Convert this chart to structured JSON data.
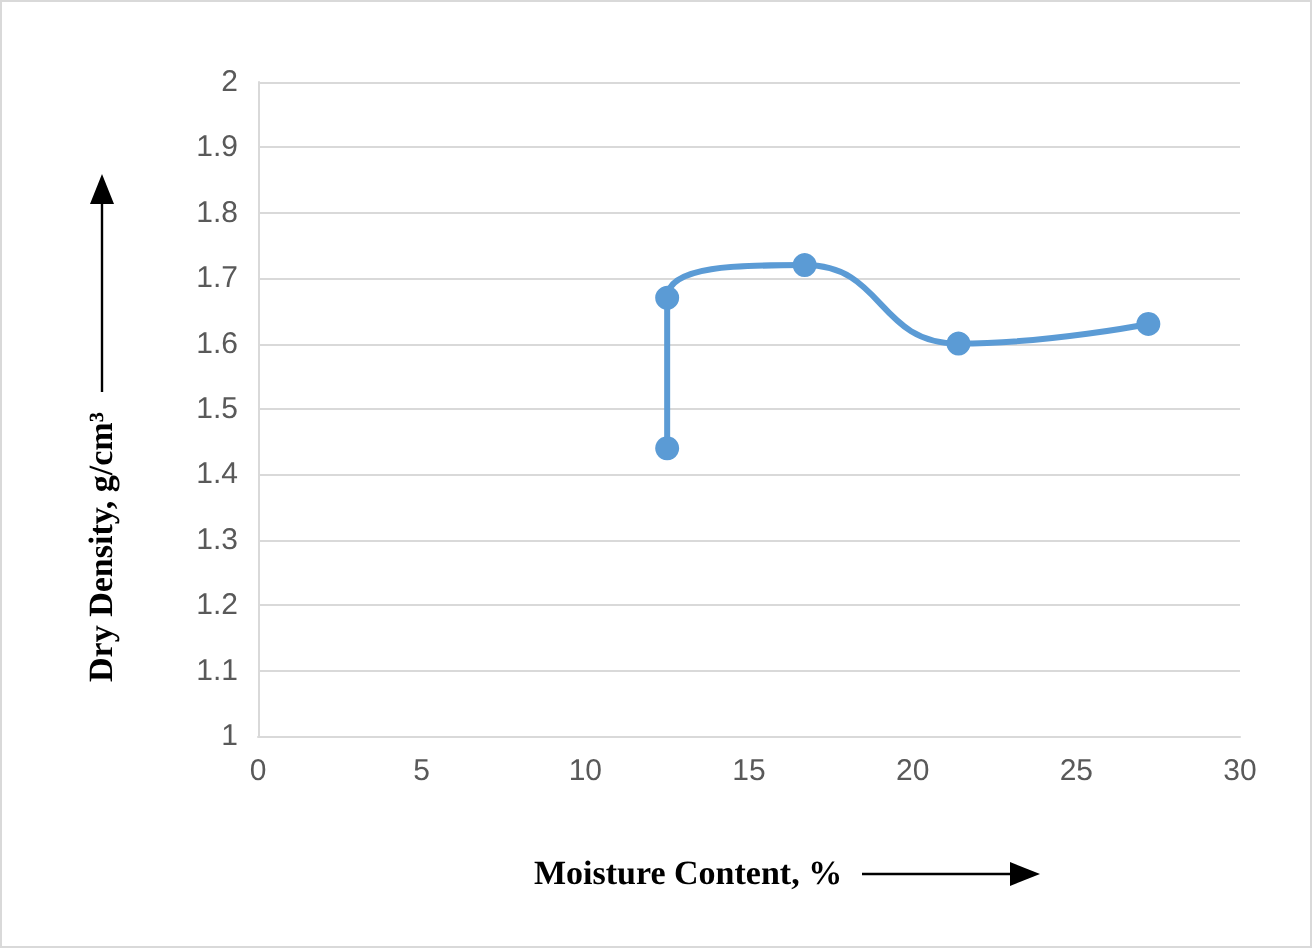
{
  "chart_data": {
    "type": "line",
    "xlabel": "Moisture Content, %",
    "ylabel": "Dry Density, g/cm³",
    "series": [
      {
        "color": "#5b9bd5",
        "x": [
          12.5,
          12.5,
          16.7,
          21.4,
          27.2
        ],
        "values": [
          1.44,
          1.67,
          1.72,
          1.6,
          1.63
        ]
      }
    ],
    "xlim": [
      0,
      30
    ],
    "xticks": [
      0,
      5,
      10,
      15,
      20,
      25,
      30
    ],
    "ylim": [
      1,
      2
    ],
    "yticks": [
      1,
      1.1,
      1.2,
      1.3,
      1.4,
      1.5,
      1.6,
      1.7,
      1.8,
      1.9,
      2
    ],
    "grid": "y",
    "marker": "circle",
    "line_style": "solid"
  }
}
